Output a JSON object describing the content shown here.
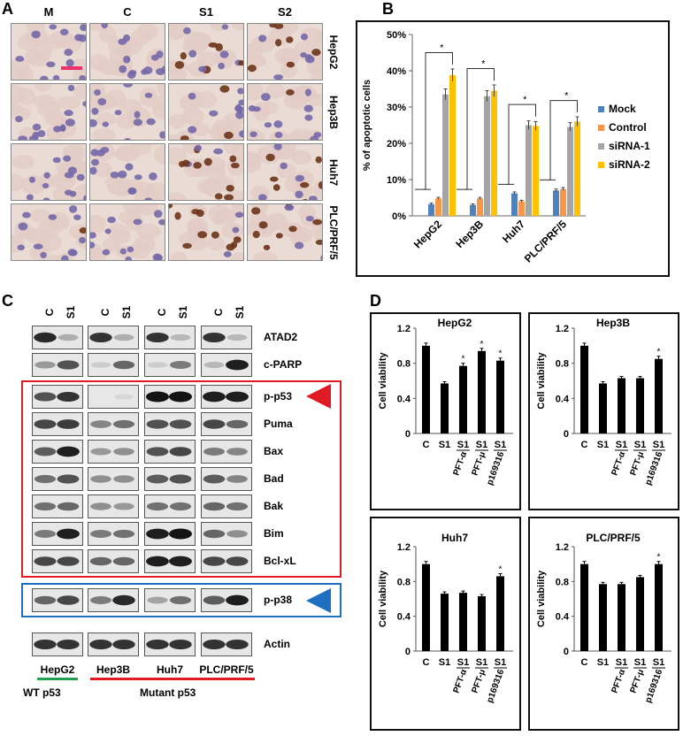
{
  "panelA": {
    "label": "A",
    "columns": [
      "M",
      "C",
      "S1",
      "S2"
    ],
    "rows": [
      "HepG2",
      "Hep3B",
      "Huh7",
      "PLC/PRF/5"
    ],
    "cells": [
      [
        {
          "brown": 0.0
        },
        {
          "brown": 0.0
        },
        {
          "brown": 0.6
        },
        {
          "brown": 0.7
        }
      ],
      [
        {
          "brown": 0.0
        },
        {
          "brown": 0.05
        },
        {
          "brown": 0.15
        },
        {
          "brown": 0.25
        }
      ],
      [
        {
          "brown": 0.0
        },
        {
          "brown": 0.0
        },
        {
          "brown": 0.7
        },
        {
          "brown": 0.7
        }
      ],
      [
        {
          "brown": 0.1
        },
        {
          "brown": 0.0
        },
        {
          "brown": 0.85
        },
        {
          "brown": 0.85
        }
      ]
    ]
  },
  "panelB": {
    "label": "B",
    "chart_data": {
      "type": "bar",
      "categories": [
        "HepG2",
        "Hep3B",
        "Huh7",
        "PLC/PRF/5"
      ],
      "series": [
        {
          "name": "Mock",
          "color": "#4f81bd",
          "values": [
            3.2,
            3.0,
            6.2,
            7.0
          ],
          "err": [
            0.3,
            0.3,
            0.4,
            0.4
          ]
        },
        {
          "name": "Control",
          "color": "#f79646",
          "values": [
            4.8,
            4.8,
            4.0,
            7.4
          ],
          "err": [
            0.3,
            0.3,
            0.3,
            0.4
          ]
        },
        {
          "name": "siRNA-1",
          "color": "#a5a5a5",
          "values": [
            33.5,
            33.0,
            25.0,
            24.5
          ],
          "err": [
            1.5,
            1.5,
            1.2,
            1.2
          ]
        },
        {
          "name": "siRNA-2",
          "color": "#ffc000",
          "values": [
            38.8,
            34.5,
            24.8,
            26.0
          ],
          "err": [
            1.7,
            1.6,
            1.2,
            1.3
          ]
        }
      ],
      "yticks": [
        "0%",
        "10%",
        "20%",
        "30%",
        "40%",
        "50%"
      ],
      "ylim": [
        0,
        50
      ],
      "ylabel": "% of apoptotic cells",
      "star": "*",
      "legend": "right"
    }
  },
  "panelC": {
    "label": "C",
    "lanes": [
      "C",
      "S1"
    ],
    "rows": [
      {
        "name": "ATAD2",
        "bands": [
          [
            0.9,
            0.25
          ],
          [
            0.85,
            0.25
          ],
          [
            0.85,
            0.2
          ],
          [
            0.85,
            0.2
          ]
        ]
      },
      {
        "name": "c-PARP",
        "bands": [
          [
            0.35,
            0.7
          ],
          [
            0.1,
            0.6
          ],
          [
            0.1,
            0.5
          ],
          [
            0.2,
            0.95
          ]
        ]
      },
      {
        "name": "p-p53",
        "bands": [
          [
            0.7,
            0.85
          ],
          [
            0.0,
            0.05
          ],
          [
            1.0,
            1.0
          ],
          [
            0.95,
            0.95
          ]
        ]
      },
      {
        "name": "Puma",
        "bands": [
          [
            0.75,
            0.8
          ],
          [
            0.45,
            0.55
          ],
          [
            0.7,
            0.7
          ],
          [
            0.75,
            0.6
          ]
        ]
      },
      {
        "name": "Bax",
        "bands": [
          [
            0.65,
            0.95
          ],
          [
            0.35,
            0.4
          ],
          [
            0.7,
            0.75
          ],
          [
            0.5,
            0.45
          ]
        ]
      },
      {
        "name": "Bad",
        "bands": [
          [
            0.55,
            0.7
          ],
          [
            0.4,
            0.4
          ],
          [
            0.65,
            0.7
          ],
          [
            0.65,
            0.45
          ]
        ]
      },
      {
        "name": "Bak",
        "bands": [
          [
            0.55,
            0.6
          ],
          [
            0.4,
            0.35
          ],
          [
            0.55,
            0.55
          ],
          [
            0.6,
            0.55
          ]
        ]
      },
      {
        "name": "Bim",
        "bands": [
          [
            0.5,
            0.95
          ],
          [
            0.5,
            0.55
          ],
          [
            0.95,
            1.0
          ],
          [
            0.6,
            0.4
          ]
        ]
      },
      {
        "name": "Bcl-xL",
        "bands": [
          [
            0.75,
            0.75
          ],
          [
            0.6,
            0.6
          ],
          [
            0.95,
            0.95
          ],
          [
            0.75,
            0.75
          ]
        ]
      },
      {
        "name": "p-p38",
        "bands": [
          [
            0.6,
            0.75
          ],
          [
            0.5,
            0.9
          ],
          [
            0.3,
            0.55
          ],
          [
            0.65,
            0.95
          ]
        ]
      },
      {
        "name": "Actin",
        "bands": [
          [
            0.85,
            0.85
          ],
          [
            0.85,
            0.85
          ],
          [
            0.85,
            0.85
          ],
          [
            0.85,
            0.85
          ]
        ]
      }
    ],
    "cell_lines": [
      "HepG2",
      "Hep3B",
      "Huh7",
      "PLC/PRF/5"
    ],
    "wt_label": "WT p53",
    "mutant_label": "Mutant p53",
    "red_color": "#e01b24",
    "blue_color": "#1f6fc0",
    "green_color": "#22a050"
  },
  "panelD": {
    "label": "D",
    "chart_data": [
      {
        "type": "bar",
        "title": "HepG2",
        "categories": [
          "C",
          "S1",
          "S1",
          "S1",
          "S1"
        ],
        "values": [
          1.0,
          0.57,
          0.77,
          0.94,
          0.83
        ],
        "err": [
          0.03,
          0.02,
          0.03,
          0.03,
          0.03
        ],
        "stars": [
          false,
          false,
          true,
          true,
          true
        ],
        "ylabel": "Cell viability",
        "yticks": [
          "0",
          "0.4",
          "0.8",
          "1.2"
        ],
        "ylim": [
          0,
          1.2
        ]
      },
      {
        "type": "bar",
        "title": "Hep3B",
        "categories": [
          "C",
          "S1",
          "S1",
          "S1",
          "S1"
        ],
        "values": [
          1.0,
          0.57,
          0.63,
          0.63,
          0.85
        ],
        "err": [
          0.03,
          0.02,
          0.02,
          0.02,
          0.03
        ],
        "stars": [
          false,
          false,
          false,
          false,
          true
        ],
        "ylabel": "Cell viability",
        "yticks": [
          "0",
          "0.4",
          "0.8",
          "1.2"
        ],
        "ylim": [
          0,
          1.2
        ]
      },
      {
        "type": "bar",
        "title": "Huh7",
        "categories": [
          "C",
          "S1",
          "S1",
          "S1",
          "S1"
        ],
        "values": [
          1.0,
          0.66,
          0.67,
          0.63,
          0.86
        ],
        "err": [
          0.03,
          0.02,
          0.02,
          0.02,
          0.03
        ],
        "stars": [
          false,
          false,
          false,
          false,
          true
        ],
        "ylabel": "Cell viability",
        "yticks": [
          "0",
          "0.4",
          "0.8",
          "1.2"
        ],
        "ylim": [
          0,
          1.2
        ]
      },
      {
        "type": "bar",
        "title": "PLC/PRF/5",
        "categories": [
          "C",
          "S1",
          "S1",
          "S1",
          "S1"
        ],
        "values": [
          1.0,
          0.77,
          0.77,
          0.85,
          1.0
        ],
        "err": [
          0.03,
          0.02,
          0.02,
          0.02,
          0.03
        ],
        "stars": [
          false,
          false,
          false,
          false,
          true
        ],
        "ylabel": "Cell viability",
        "yticks": [
          "0",
          "0.4",
          "0.8",
          "1.2"
        ],
        "ylim": [
          0,
          1.2
        ]
      }
    ],
    "treatments": [
      "PFT-α",
      "PFT-μ",
      "p169316"
    ],
    "star": "*"
  }
}
